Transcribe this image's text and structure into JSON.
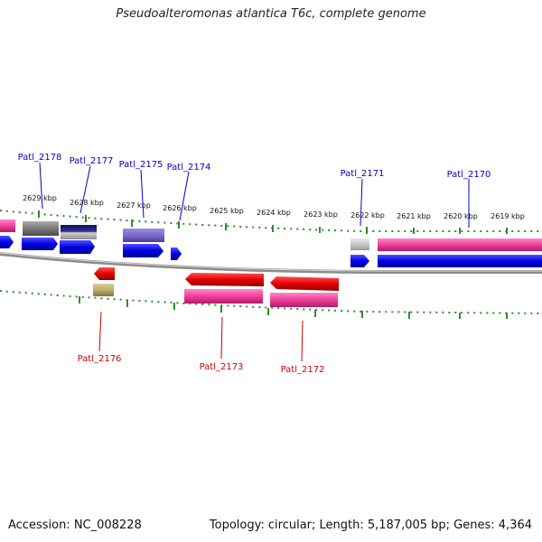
{
  "title": "Pseudoalteromonas atlantica T6c, complete genome",
  "footer": {
    "accession": "Accession: NC_008228",
    "summary": "Topology: circular; Length: 5,187,005 bp; Genes: 4,364"
  },
  "colors": {
    "ruler_ticks": "#2e8b2e",
    "backbone": "#8c8c8c",
    "forward_gene": "#0000e6",
    "reverse_gene": "#e60000",
    "forward_label": "#0000cc",
    "reverse_label": "#cc0000",
    "feature_pink": "#f0409a",
    "feature_gray": "#7a7a7a",
    "feature_navy": "#202070",
    "feature_lavender": "#7a6cc8",
    "feature_lightgray": "#c8c8c8",
    "feature_khaki": "#b8b070"
  },
  "scale_labels": [
    "2629 kbp",
    "2628 kbp",
    "2627 kbp",
    "2626 kbp",
    "2625 kbp",
    "2624 kbp",
    "2623 kbp",
    "2622 kbp",
    "2621 kbp",
    "2620 kbp",
    "2619 kbp"
  ],
  "gene_labels": {
    "forward": [
      "Patl_2178",
      "Patl_2177",
      "Patl_2175",
      "Patl_2174",
      "Patl_2171",
      "Patl_2170"
    ],
    "reverse": [
      "Patl_2176",
      "Patl_2173",
      "Patl_2172"
    ]
  }
}
